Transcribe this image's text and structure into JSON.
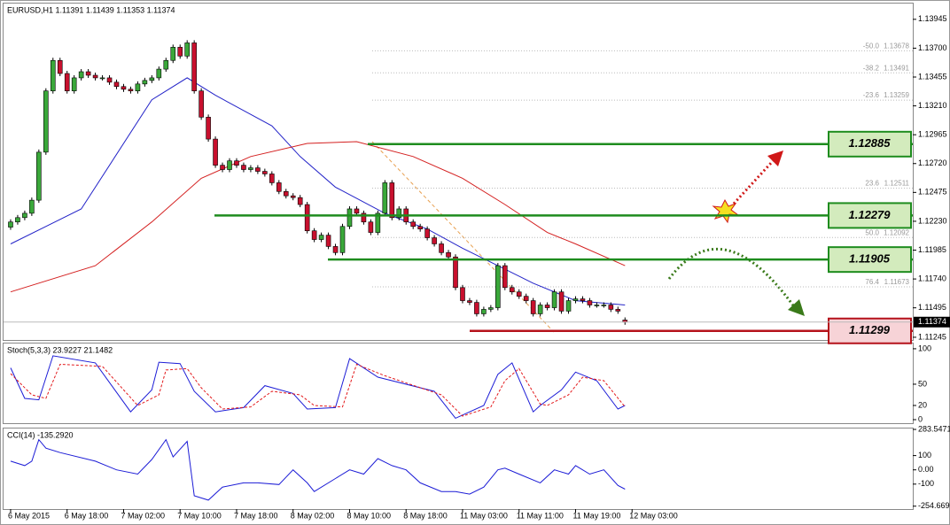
{
  "chart_data": [
    {
      "type": "candlestick",
      "title": "EURUSD,H1 1.11391 1.11439 1.11353 1.11374",
      "open": [
        1.1218,
        1.12224,
        1.12261,
        1.12298,
        1.12409,
        1.12817,
        1.13337,
        1.13596,
        1.13485,
        1.13337,
        1.13448,
        1.135,
        1.1347,
        1.13448,
        1.13448,
        1.13411,
        1.13374,
        1.13351,
        1.13337,
        1.13396,
        1.13426,
        1.13448,
        1.13522,
        1.13596,
        1.13708,
        1.13633,
        1.13745,
        1.13337,
        1.13114,
        1.12928,
        1.12706,
        1.12669,
        1.12743,
        1.12706,
        1.12669,
        1.12684,
        1.12654,
        1.12632,
        1.12557,
        1.12483,
        1.12446,
        1.12431,
        1.12372,
        1.12149,
        1.12075,
        1.12112,
        1.12016,
        1.11964,
        1.12186,
        1.12335,
        1.12298,
        1.12224,
        1.12135,
        1.12298,
        1.12557,
        1.12261,
        1.12335,
        1.12224,
        1.12186,
        1.12164,
        1.1209,
        1.12038,
        1.11964,
        1.11927,
        1.11667,
        1.11556,
        1.11541,
        1.11444,
        1.11482,
        1.11496,
        1.11853,
        1.11667,
        1.1163,
        1.11593,
        1.11556,
        1.11444,
        1.11519,
        1.11496,
        1.1163,
        1.11467,
        1.11556,
        1.11571,
        1.11556,
        1.11519,
        1.11519,
        1.11519,
        1.11482,
        1.11391
      ],
      "close": [
        1.12224,
        1.12261,
        1.12298,
        1.12409,
        1.12817,
        1.13337,
        1.13596,
        1.13485,
        1.13337,
        1.13448,
        1.135,
        1.1347,
        1.13448,
        1.13448,
        1.13411,
        1.13374,
        1.13351,
        1.13337,
        1.13396,
        1.13426,
        1.13448,
        1.13522,
        1.13596,
        1.13708,
        1.13633,
        1.13745,
        1.13337,
        1.13114,
        1.12928,
        1.12706,
        1.12669,
        1.12743,
        1.12706,
        1.12669,
        1.12684,
        1.12654,
        1.12632,
        1.12557,
        1.12483,
        1.12446,
        1.12431,
        1.12372,
        1.12149,
        1.12075,
        1.12112,
        1.12016,
        1.11964,
        1.12186,
        1.12335,
        1.12298,
        1.12224,
        1.12135,
        1.12298,
        1.12557,
        1.12261,
        1.12335,
        1.12224,
        1.12186,
        1.12164,
        1.1209,
        1.12038,
        1.11964,
        1.11927,
        1.11667,
        1.11556,
        1.11541,
        1.11444,
        1.11482,
        1.11496,
        1.11853,
        1.11667,
        1.1163,
        1.11593,
        1.11556,
        1.11444,
        1.11519,
        1.11496,
        1.1163,
        1.11467,
        1.11556,
        1.11571,
        1.11556,
        1.11519,
        1.11519,
        1.11519,
        1.11482,
        1.11467,
        1.11374
      ],
      "up_color": "#3aa83a",
      "down_color": "#c8102e",
      "series": [
        {
          "color": "#2323c8",
          "x": [
            0,
            10,
            20,
            25,
            29,
            37,
            41,
            46,
            53,
            59,
            64,
            69,
            74,
            80,
            87
          ],
          "values": [
            1.12038,
            1.12335,
            1.13262,
            1.13448,
            1.133,
            1.1304,
            1.1278,
            1.1252,
            1.12298,
            1.12164,
            1.12001,
            1.11853,
            1.11704,
            1.11556,
            1.11519
          ]
        },
        {
          "color": "#d42020",
          "x": [
            0,
            12,
            20,
            27,
            34,
            42,
            49,
            57,
            64,
            70,
            76,
            80,
            87
          ],
          "values": [
            1.1163,
            1.11853,
            1.12224,
            1.12595,
            1.1278,
            1.12891,
            1.12906,
            1.1278,
            1.12595,
            1.12372,
            1.12135,
            1.12038,
            1.11853
          ]
        }
      ],
      "xlim": [
        -1,
        127.75
      ],
      "xticks": [
        {
          "value": 0,
          "label": "6 May 2015"
        },
        {
          "value": 8,
          "label": "6 May 18:00"
        },
        {
          "value": 16,
          "label": "7 May 02:00"
        },
        {
          "value": 24,
          "label": "7 May 10:00"
        },
        {
          "value": 32,
          "label": "7 May 18:00"
        },
        {
          "value": 40,
          "label": "8 May 02:00"
        },
        {
          "value": 48,
          "label": "8 May 10:00"
        },
        {
          "value": 56,
          "label": "8 May 18:00"
        },
        {
          "value": 64,
          "label": "11 May 03:00"
        },
        {
          "value": 72,
          "label": "11 May 11:00"
        },
        {
          "value": 80,
          "label": "11 May 19:00"
        },
        {
          "value": 88,
          "label": "12 May 03:00"
        }
      ],
      "ylim": [
        1.11222,
        1.14079
      ],
      "yticks": [
        1.13945,
        {
          "value": 1.137,
          "label": "1.13700"
        },
        1.13455,
        {
          "value": 1.1321,
          "label": "1.13210"
        },
        1.12965,
        {
          "value": 1.1272,
          "label": "1.12720"
        },
        1.12475,
        {
          "value": 1.1223,
          "label": "1.12230"
        },
        1.11985,
        {
          "value": 1.1174,
          "label": "1.11740"
        },
        1.11495,
        1.11245
      ],
      "levels": [
        {
          "value": 1.12885,
          "color": "#1e8c1e"
        },
        {
          "value": 1.12279,
          "color": "#1e8c1e"
        },
        {
          "value": 1.11905,
          "color": "#1e8c1e"
        },
        {
          "value": 1.11299,
          "color": "#b5121b"
        }
      ],
      "fibonacci": [
        {
          "label": "-50.0",
          "price": 1.13678
        },
        {
          "label": "-38.2",
          "price": 1.13491
        },
        {
          "label": "-23.6",
          "price": 1.13259
        },
        {
          "label": "23.6",
          "price": 1.12511
        },
        {
          "label": "50.0",
          "price": 1.12092
        },
        {
          "label": "76.4",
          "price": 1.11673
        }
      ]
    },
    {
      "type": "line",
      "title": "Stoch(5,3,3) 23.9227 21.1482",
      "ylim": [
        -5,
        107.4
      ],
      "yticks": [
        100,
        50,
        20,
        0
      ],
      "series": [
        {
          "color": "#1c1cd6",
          "style": "solid",
          "x": [
            0,
            2,
            4,
            6,
            12,
            17,
            20,
            21,
            24,
            26,
            29,
            33,
            36,
            40,
            42,
            46,
            48,
            52,
            60,
            63,
            67,
            69,
            71,
            74,
            75,
            78,
            80,
            83,
            86,
            87
          ],
          "values": [
            73,
            30,
            28,
            90,
            80,
            11,
            42,
            81,
            79,
            40,
            11,
            17,
            48,
            37,
            15,
            17,
            86,
            60,
            40,
            2,
            20,
            64,
            80,
            11,
            20,
            42,
            67,
            55,
            15,
            20
          ]
        },
        {
          "color": "#e31a1c",
          "style": "dashed",
          "x": [
            0,
            3,
            5,
            7,
            13,
            18,
            21,
            22,
            25,
            27,
            30,
            34,
            37,
            41,
            43,
            47,
            49,
            53,
            61,
            64,
            68,
            70,
            72,
            75,
            76,
            79,
            81,
            84,
            87
          ],
          "values": [
            65,
            35,
            30,
            78,
            75,
            20,
            35,
            70,
            72,
            45,
            15,
            18,
            40,
            35,
            20,
            18,
            78,
            62,
            35,
            5,
            18,
            55,
            72,
            22,
            20,
            35,
            60,
            55,
            18
          ]
        }
      ]
    },
    {
      "type": "line",
      "title": "CCI(14) -135.2920",
      "ylim": [
        -275,
        290
      ],
      "yticks": [
        283.5471,
        100,
        {
          "value": 0,
          "label": "0.00"
        },
        -100,
        {
          "value": -254.669,
          "label": "-254.6690"
        }
      ],
      "series": [
        {
          "color": "#1c1cd6",
          "style": "solid",
          "x": [
            0,
            2,
            3,
            4,
            5,
            7,
            12,
            15,
            18,
            20,
            22,
            23,
            25,
            26,
            28,
            30,
            33,
            35,
            38,
            40,
            42,
            43,
            46,
            48,
            50,
            52,
            54,
            56,
            58,
            61,
            63,
            65,
            67,
            69,
            70,
            72,
            75,
            77,
            79,
            80,
            82,
            84,
            86,
            87
          ],
          "values": [
            61,
            30,
            61,
            212,
            152,
            121,
            61,
            0,
            -30,
            73,
            212,
            91,
            200,
            -182,
            -212,
            -121,
            -91,
            -91,
            -103,
            0,
            -91,
            -152,
            -61,
            0,
            -30,
            79,
            30,
            0,
            -91,
            -152,
            -152,
            -170,
            -121,
            0,
            12,
            -30,
            -91,
            0,
            -30,
            30,
            -30,
            0,
            -109,
            -135.292
          ]
        }
      ]
    }
  ]
}
